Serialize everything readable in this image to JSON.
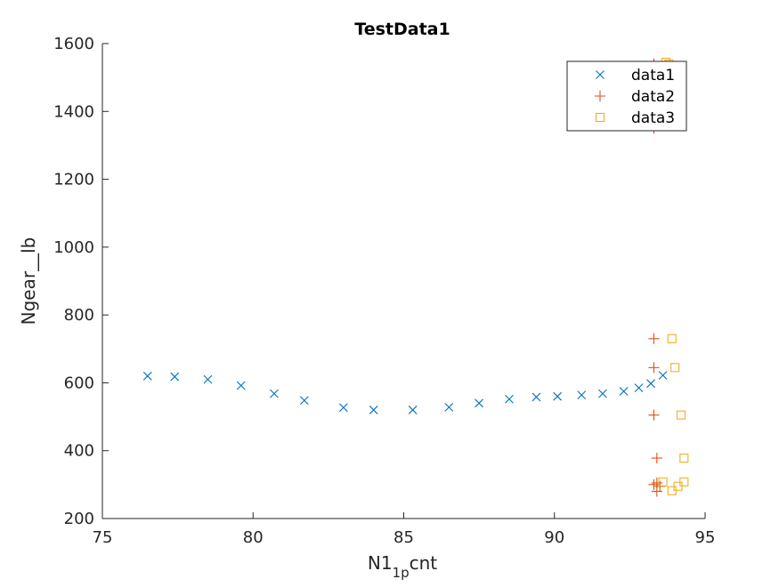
{
  "chart_data": {
    "type": "scatter",
    "title": "TestData1",
    "xlabel_main": "N1",
    "xlabel_sub": "1p",
    "xlabel_tail": "cnt",
    "ylabel": "Ngear__lb",
    "xlim": [
      75,
      95
    ],
    "ylim": [
      200,
      1600
    ],
    "xticks": [
      75,
      80,
      85,
      90,
      95
    ],
    "yticks": [
      200,
      400,
      600,
      800,
      1000,
      1200,
      1400,
      1600
    ],
    "grid": false,
    "legend_position": "top-right",
    "series": [
      {
        "name": "data1",
        "marker": "x",
        "color": "#0072BD",
        "x": [
          76.5,
          77.4,
          78.5,
          79.6,
          80.7,
          81.7,
          83.0,
          84.0,
          85.3,
          86.5,
          87.5,
          88.5,
          89.4,
          90.1,
          90.9,
          91.6,
          92.3,
          92.8,
          93.2,
          93.6
        ],
        "y": [
          620,
          618,
          610,
          592,
          568,
          548,
          527,
          520,
          520,
          528,
          540,
          552,
          558,
          560,
          564,
          568,
          575,
          585,
          598,
          622
        ]
      },
      {
        "name": "data2",
        "marker": "+",
        "color": "#D95319",
        "x": [
          93.3,
          93.3,
          93.3,
          93.3,
          93.3,
          93.4,
          93.4,
          93.5,
          93.4,
          93.3
        ],
        "y": [
          1540,
          1350,
          730,
          645,
          505,
          378,
          305,
          295,
          280,
          300
        ]
      },
      {
        "name": "data3",
        "marker": "square",
        "color": "#EDB120",
        "x": [
          93.7,
          93.8,
          93.9,
          94.0,
          94.2,
          94.3,
          94.3,
          94.1,
          93.9,
          93.6
        ],
        "y": [
          1545,
          1540,
          730,
          645,
          505,
          378,
          308,
          295,
          282,
          308
        ]
      }
    ]
  }
}
